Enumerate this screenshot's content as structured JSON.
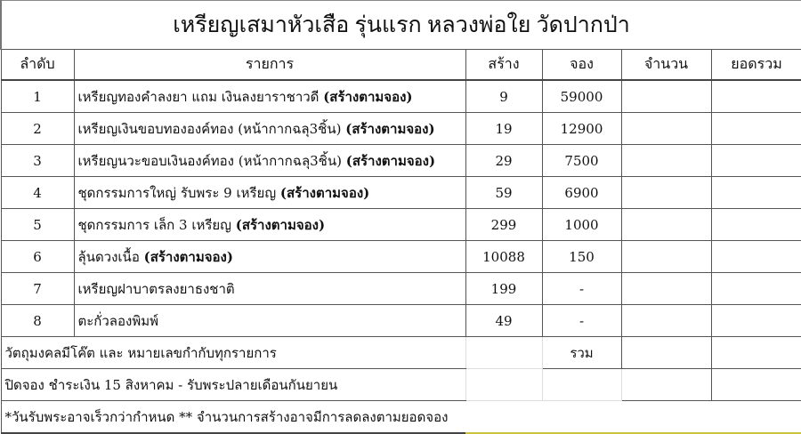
{
  "title": "เหรียญเสมาหัวเสือ รุ่นแรก หลวงพ่อใย วัดปากป่า",
  "headers": [
    "ลำดับ",
    "รายการ",
    "สร้าง",
    "จอง",
    "จำนวน",
    "ยอดรวม"
  ],
  "rows": [
    {
      "no": "1",
      "item": "เหรียญทองคำลงยา แถม เงินลงยาราชาวดี",
      "note": "(สร้างตามจอง)",
      "built": "9",
      "price": "59000"
    },
    {
      "no": "2",
      "item": "เหรียญเงินขอบทององค์ทอง (หน้ากากฉลุ3ชิ้น)",
      "note": "(สร้างตามจอง)",
      "built": "19",
      "price": "12900"
    },
    {
      "no": "3",
      "item": "เหรียญนวะขอบเงินองค์ทอง (หน้ากากฉลุ3ชิ้น)",
      "note": "(สร้างตามจอง)",
      "built": "29",
      "price": "7500"
    },
    {
      "no": "4",
      "item": "ชุดกรรมการใหญ่ รับพระ 9 เหรียญ",
      "note": "(สร้างตามจอง)",
      "built": "59",
      "price": "6900"
    },
    {
      "no": "5",
      "item": "ชุดกรรมการ เล็ก 3 เหรียญ",
      "note": "(สร้างตามจอง)",
      "built": "299",
      "price": "1000"
    },
    {
      "no": "6",
      "item": "ลุ้นดวงเนื้อ",
      "note": "(สร้างตามจอง)",
      "built": "10088",
      "price": "150"
    },
    {
      "no": "7",
      "item": "เหรียญฝาบาตรลงยาธงชาติ",
      "note": "",
      "built": "199",
      "price": "-"
    },
    {
      "no": "8",
      "item": "ตะกั่วลองพิมพ์",
      "note": "",
      "built": "49",
      "price": "-"
    }
  ],
  "footer": {
    "note1": "วัตถุมงคลมีโค๊ต และ หมายเลขกำกับทุกรายการ",
    "total_label": "รวม",
    "note2": "ปิดจอง ชำระเงิน 15 สิงหาคม - รับพระปลายเดือนกันยายน",
    "note3": "*วันรับพระอาจเร็วกว่ากำหนด ** จำนวนการสร้างอาจมีการลดลงตามยอดจอง"
  }
}
